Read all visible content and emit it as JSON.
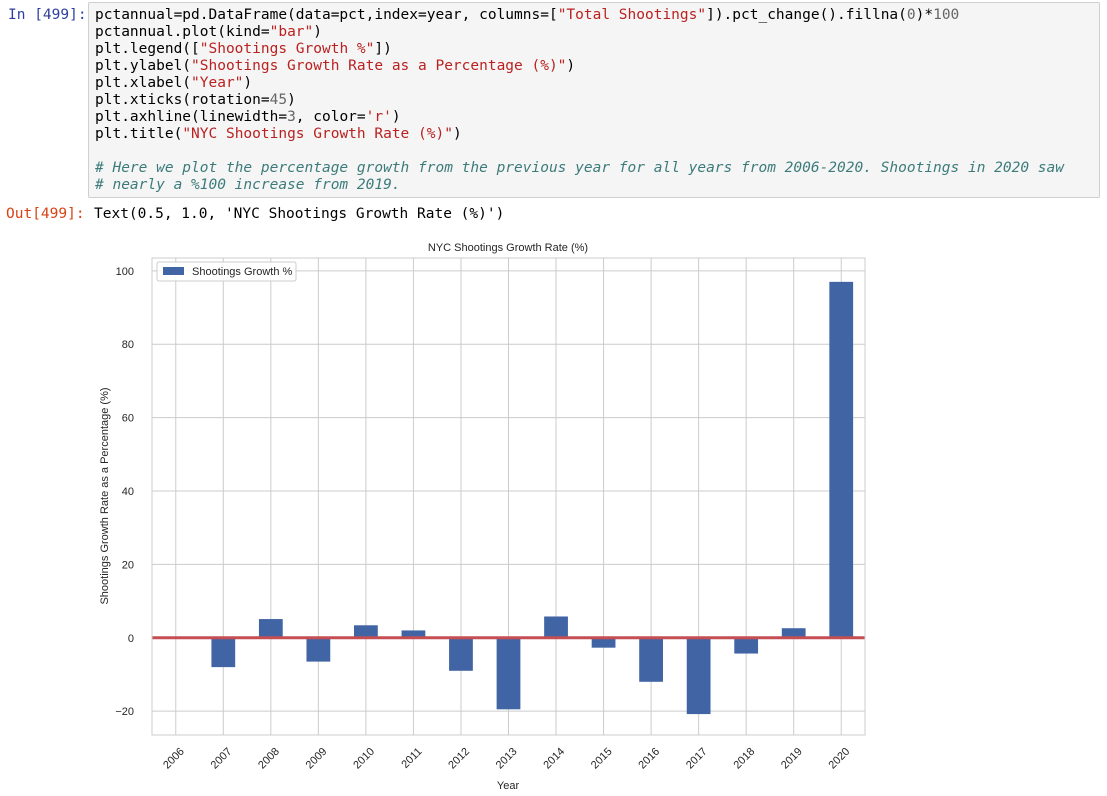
{
  "cell": {
    "in_prompt": "In [499]:",
    "out_prompt": "Out[499]:",
    "code_lines": [
      [
        {
          "t": "pctannual=pd.DataFrame(data=pct,index=year, columns=["
        },
        {
          "t": "\"Total Shootings\"",
          "k": "s"
        },
        {
          "t": "]).pct_change().fillna("
        },
        {
          "t": "0",
          "k": "n"
        },
        {
          "t": ")*"
        },
        {
          "t": "100",
          "k": "n"
        }
      ],
      [
        {
          "t": "pctannual.plot(kind="
        },
        {
          "t": "\"bar\"",
          "k": "s"
        },
        {
          "t": ")"
        }
      ],
      [
        {
          "t": "plt.legend(["
        },
        {
          "t": "\"Shootings Growth %\"",
          "k": "s"
        },
        {
          "t": "])"
        }
      ],
      [
        {
          "t": "plt.ylabel("
        },
        {
          "t": "\"Shootings Growth Rate as a Percentage (%)\"",
          "k": "s"
        },
        {
          "t": ")"
        }
      ],
      [
        {
          "t": "plt.xlabel("
        },
        {
          "t": "\"Year\"",
          "k": "s"
        },
        {
          "t": ")"
        }
      ],
      [
        {
          "t": "plt.xticks(rotation="
        },
        {
          "t": "45",
          "k": "n"
        },
        {
          "t": ")"
        }
      ],
      [
        {
          "t": "plt.axhline(linewidth="
        },
        {
          "t": "3",
          "k": "n"
        },
        {
          "t": ", color="
        },
        {
          "t": "'r'",
          "k": "s"
        },
        {
          "t": ")"
        }
      ],
      [
        {
          "t": "plt.title("
        },
        {
          "t": "\"NYC Shootings Growth Rate (%)\"",
          "k": "s"
        },
        {
          "t": ")"
        }
      ],
      [],
      [
        {
          "t": "# Here we plot the percentage growth from the previous year for all years from 2006-2020. Shootings in 2020 saw",
          "k": "c"
        }
      ],
      [
        {
          "t": "# nearly a %100 increase from 2019.",
          "k": "c"
        }
      ]
    ],
    "output_text": "Text(0.5, 1.0, 'NYC Shootings Growth Rate (%)')"
  },
  "colors": {
    "bar": "#4064a4",
    "axhline": "#c44e52",
    "grid": "#cccccc",
    "frame": "#cccccc"
  },
  "chart_data": {
    "type": "bar",
    "title": "NYC Shootings Growth Rate (%)",
    "xlabel": "Year",
    "ylabel": "Shootings Growth Rate as a Percentage (%)",
    "categories": [
      "2006",
      "2007",
      "2008",
      "2009",
      "2010",
      "2011",
      "2012",
      "2013",
      "2014",
      "2015",
      "2016",
      "2017",
      "2018",
      "2019",
      "2020"
    ],
    "series": [
      {
        "name": "Shootings Growth %",
        "values": [
          0,
          -8.0,
          5.1,
          -6.5,
          3.4,
          2.0,
          -9.0,
          -19.5,
          5.8,
          -2.7,
          -12.0,
          -20.8,
          -4.3,
          2.6,
          97.0
        ]
      }
    ],
    "ylim": [
      -26.5,
      103.5
    ],
    "yticks": [
      -20,
      0,
      20,
      40,
      60,
      80,
      100
    ],
    "ytick_labels": [
      "−20",
      "0",
      "20",
      "40",
      "60",
      "80",
      "100"
    ],
    "grid": true,
    "legend_position": "upper left",
    "axhline": {
      "y": 0,
      "linewidth": 3,
      "color": "r"
    }
  }
}
